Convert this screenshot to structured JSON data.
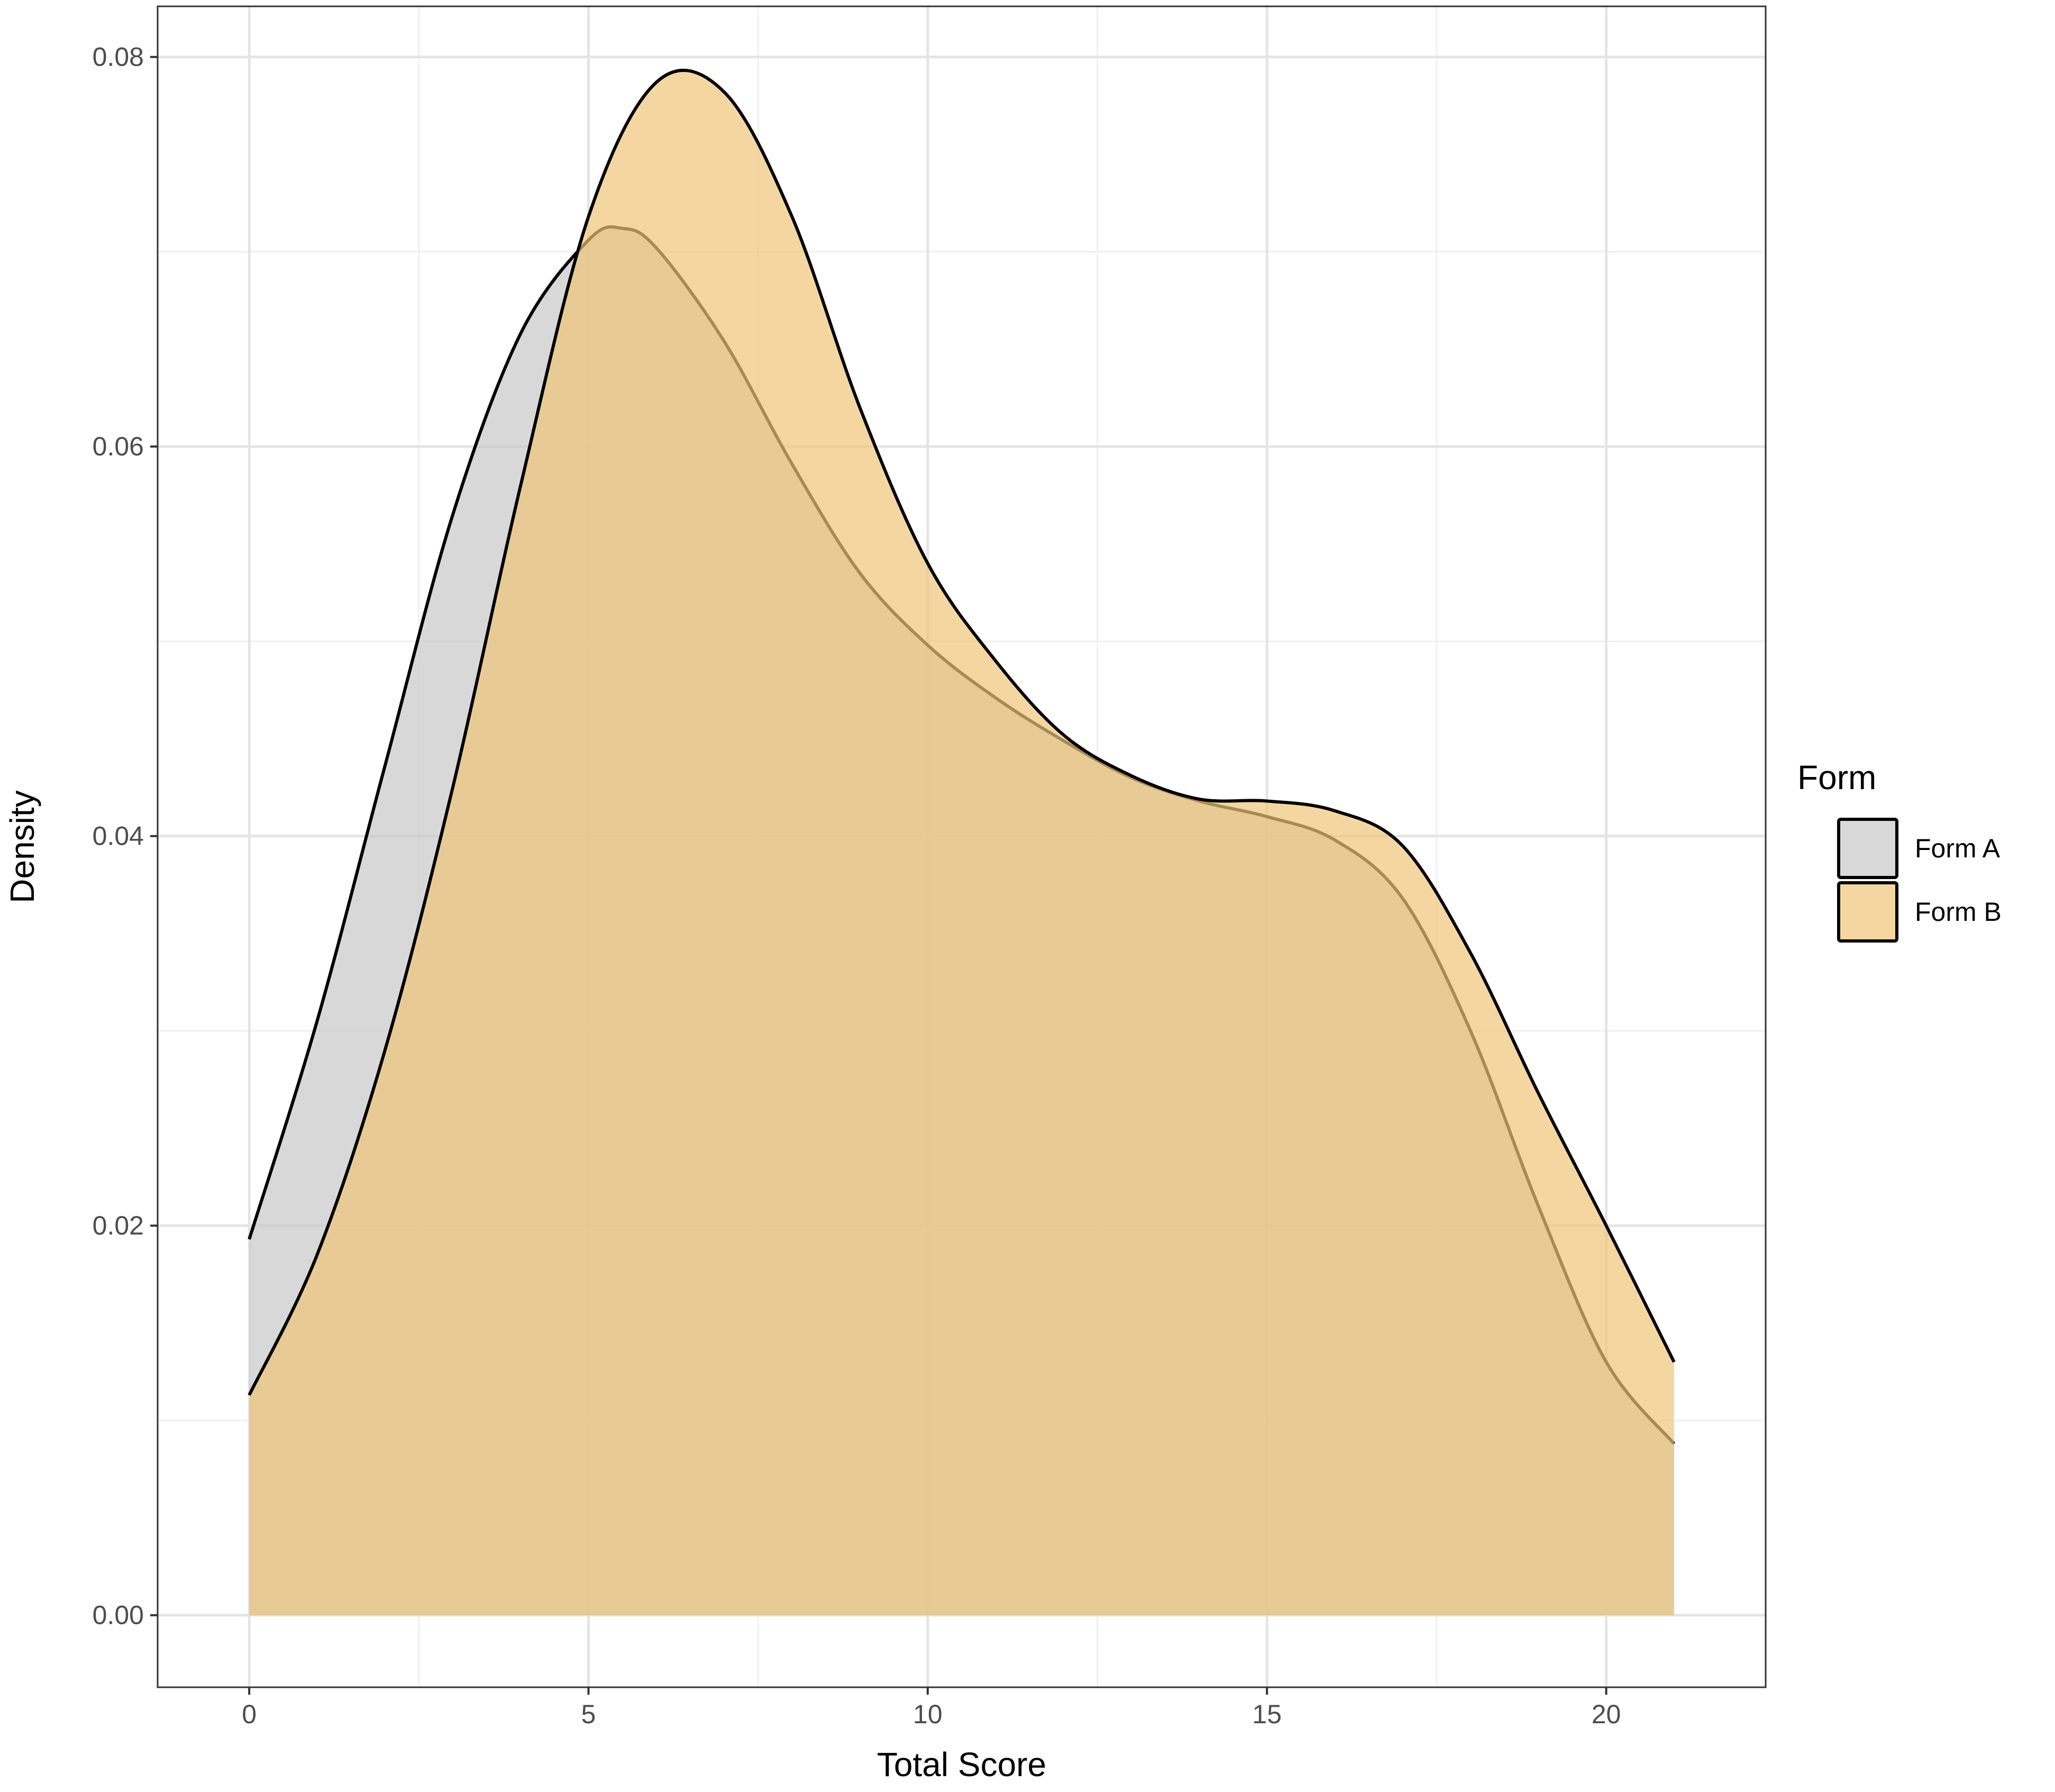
{
  "chart_data": {
    "type": "area",
    "title": "",
    "xlabel": "Total Score",
    "ylabel": "Density",
    "xlim": [
      -1.35,
      22.35
    ],
    "ylim": [
      -0.0037,
      0.0826
    ],
    "x_ticks": [
      0,
      5,
      10,
      15,
      20
    ],
    "x_tick_labels": [
      "0",
      "5",
      "10",
      "15",
      "20"
    ],
    "y_ticks": [
      0.0,
      0.02,
      0.04,
      0.06,
      0.08
    ],
    "y_tick_labels": [
      "0.00",
      "0.02",
      "0.04",
      "0.06",
      "0.08"
    ],
    "grid": true,
    "legend": {
      "title": "Form",
      "placement": "right"
    },
    "series": [
      {
        "name": "Form A",
        "color": "#c8c8c8",
        "x": [
          0,
          1,
          2,
          3,
          4,
          5,
          5.5,
          6,
          7,
          8,
          9,
          10,
          11,
          12,
          13,
          14,
          15,
          16,
          17,
          18,
          19,
          20,
          21
        ],
        "y": [
          0.0193,
          0.0305,
          0.0436,
          0.0565,
          0.0658,
          0.0706,
          0.0712,
          0.0702,
          0.0654,
          0.0591,
          0.0535,
          0.0498,
          0.0471,
          0.0449,
          0.043,
          0.0418,
          0.041,
          0.0398,
          0.0368,
          0.03,
          0.021,
          0.013,
          0.0088
        ]
      },
      {
        "name": "Form B",
        "color": "#f0c678",
        "x": [
          0,
          1,
          2,
          3,
          4,
          5,
          6,
          7,
          8,
          9,
          10,
          11,
          12,
          13,
          14,
          15,
          16,
          17,
          18,
          19,
          20,
          21
        ],
        "y": [
          0.0113,
          0.0185,
          0.029,
          0.0425,
          0.058,
          0.0718,
          0.0787,
          0.0782,
          0.0718,
          0.062,
          0.054,
          0.049,
          0.0452,
          0.0431,
          0.0419,
          0.0418,
          0.0413,
          0.0395,
          0.034,
          0.0268,
          0.02,
          0.013
        ]
      }
    ]
  }
}
